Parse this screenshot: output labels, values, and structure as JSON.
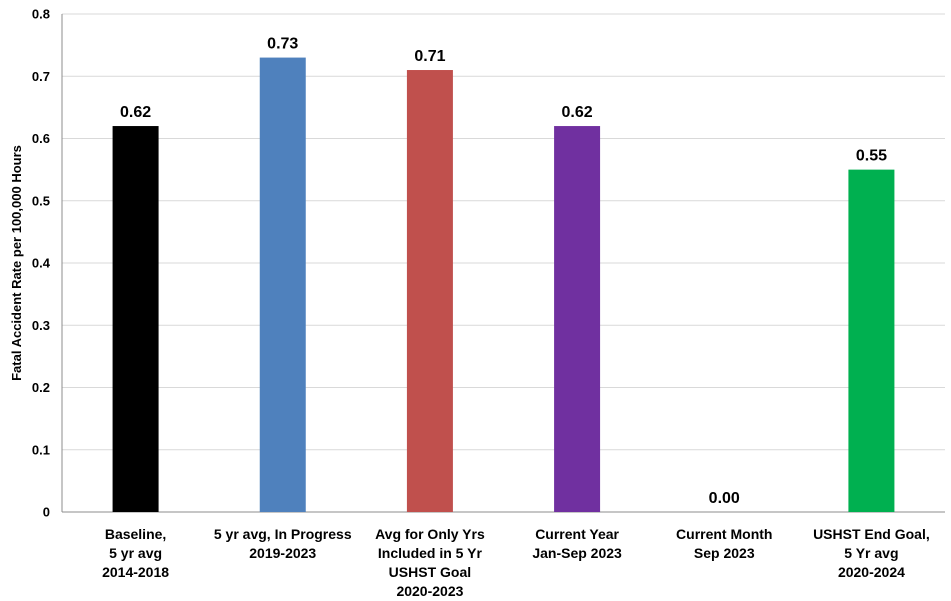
{
  "chart_data": {
    "type": "bar",
    "title": "",
    "xlabel": "",
    "ylabel": "Fatal Accident Rate per 100,000 Hours",
    "ylim": [
      0,
      0.8
    ],
    "yticks": [
      "0",
      "0.1",
      "0.2",
      "0.3",
      "0.4",
      "0.5",
      "0.6",
      "0.7",
      "0.8"
    ],
    "ytick_values": [
      0,
      0.1,
      0.2,
      0.3,
      0.4,
      0.5,
      0.6,
      0.7,
      0.8
    ],
    "grid": true,
    "legend": "none",
    "categories": [
      [
        "Baseline,",
        "5 yr avg",
        "2014-2018"
      ],
      [
        "5 yr avg, In Progress",
        "2019-2023"
      ],
      [
        "Avg for Only Yrs",
        "Included in 5 Yr",
        "USHST Goal",
        "2020-2023"
      ],
      [
        "Current Year",
        "Jan-Sep 2023"
      ],
      [
        "Current Month",
        "Sep 2023"
      ],
      [
        "USHST End Goal,",
        "5 Yr avg",
        "2020-2024"
      ]
    ],
    "values": [
      0.62,
      0.73,
      0.71,
      0.62,
      0.0,
      0.55
    ],
    "value_labels": [
      "0.62",
      "0.73",
      "0.71",
      "0.62",
      "0.00",
      "0.55"
    ],
    "colors": [
      "#000000",
      "#4F81BD",
      "#C0504D",
      "#7030A0",
      "#FFFFFF",
      "#00B050"
    ]
  }
}
